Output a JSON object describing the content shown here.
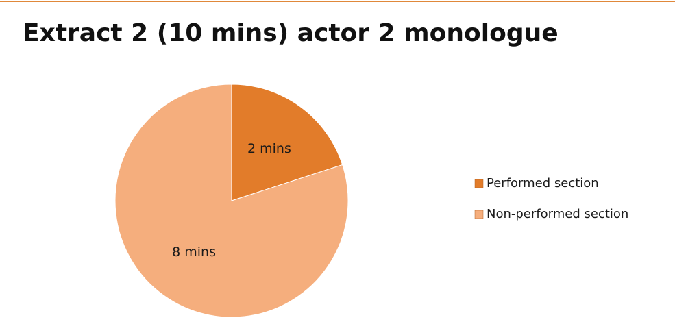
{
  "chart_data": {
    "type": "pie",
    "title": "Extract 2 (10 mins) actor 2 monologue",
    "categories": [
      "Performed section",
      "Non-performed section"
    ],
    "values": [
      2,
      8
    ],
    "value_labels": [
      "2 mins",
      "8 mins"
    ],
    "colors": [
      "#e27c2a",
      "#f5ae7d"
    ],
    "legend": "right"
  }
}
